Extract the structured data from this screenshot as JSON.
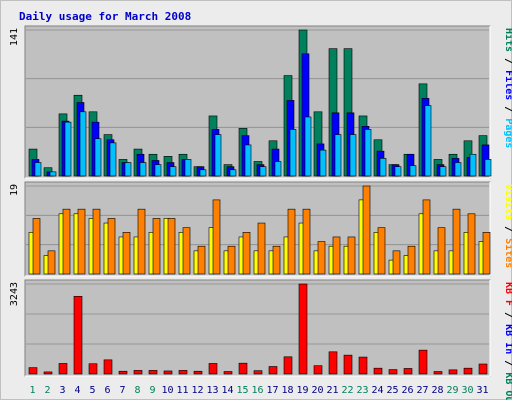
{
  "chart_data": {
    "type": "bar",
    "title": "Daily usage for March 2008",
    "categories": [
      "1",
      "2",
      "3",
      "4",
      "5",
      "6",
      "7",
      "8",
      "9",
      "10",
      "11",
      "12",
      "13",
      "14",
      "15",
      "16",
      "17",
      "18",
      "19",
      "20",
      "21",
      "22",
      "23",
      "24",
      "25",
      "26",
      "27",
      "28",
      "29",
      "30",
      "31"
    ],
    "weekend_days": [
      "1",
      "2",
      "8",
      "9",
      "15",
      "16",
      "22",
      "23",
      "29",
      "30"
    ],
    "colors": {
      "title": "#0000cc",
      "hits": "#00805c",
      "files": "#0000ff",
      "pages": "#00c0ff",
      "visits": "#ffff00",
      "sites": "#ff8000",
      "kb_in": "#0000ff",
      "kb_out": "#00805c",
      "kb_f": "#ff0000",
      "weekday_label": "#000080",
      "weekend_label": "#00805c",
      "plot_bg": "#c0c0c0"
    },
    "panels": [
      {
        "ymax_label": "141",
        "ymax": 141,
        "legend": [
          {
            "text": "Hits",
            "color": "#00805c"
          },
          {
            "text": "Files",
            "color": "#0000ff"
          },
          {
            "text": "Pages",
            "color": "#00c0ff"
          }
        ],
        "series": [
          {
            "name": "Hits",
            "values": [
              26,
              8,
              60,
              78,
              62,
              40,
              16,
              26,
              21,
              19,
              21,
              9,
              58,
              11,
              46,
              14,
              34,
              97,
              141,
              62,
              123,
              123,
              58,
              35,
              11,
              21,
              89,
              16,
              21,
              34,
              39
            ]
          },
          {
            "name": "Files",
            "values": [
              16,
              4,
              53,
              71,
              52,
              35,
              13,
              21,
              15,
              13,
              16,
              9,
              45,
              9,
              39,
              11,
              26,
              73,
              118,
              31,
              61,
              61,
              48,
              24,
              11,
              21,
              75,
              11,
              17,
              18,
              30
            ]
          },
          {
            "name": "Pages",
            "values": [
              13,
              4,
              52,
              62,
              36,
              32,
              13,
              13,
              11,
              9,
              16,
              6,
              40,
              6,
              30,
              9,
              14,
              45,
              57,
              25,
              40,
              40,
              45,
              17,
              9,
              10,
              68,
              9,
              13,
              21,
              16
            ]
          }
        ]
      },
      {
        "ymax_label": "19",
        "ymax": 19,
        "legend": [
          {
            "text": "Visits",
            "color": "#ffff00"
          },
          {
            "text": "Sites",
            "color": "#ff8000"
          }
        ],
        "series": [
          {
            "name": "Visits",
            "values": [
              9,
              4,
              13,
              13,
              12,
              11,
              8,
              8,
              9,
              12,
              9,
              5,
              10,
              5,
              8,
              5,
              5,
              8,
              11,
              5,
              6,
              6,
              16,
              9,
              3,
              4,
              13,
              5,
              5,
              9,
              7
            ]
          },
          {
            "name": "Sites",
            "values": [
              12,
              5,
              14,
              14,
              14,
              12,
              9,
              14,
              12,
              12,
              10,
              6,
              16,
              6,
              9,
              11,
              6,
              14,
              14,
              7,
              8,
              8,
              19,
              10,
              5,
              6,
              16,
              10,
              14,
              13,
              9
            ]
          }
        ]
      },
      {
        "ymax_label": "3243",
        "ymax": 3243,
        "legend": [
          {
            "text": "KB F",
            "color": "#ff0000"
          },
          {
            "text": "KB In",
            "color": "#0000ff"
          },
          {
            "text": "KB Out",
            "color": "#00805c"
          }
        ],
        "series": [
          {
            "name": "KB F",
            "values": [
              230,
              75,
              380,
              2800,
              370,
              510,
              100,
              130,
              130,
              110,
              130,
              100,
              380,
              90,
              390,
              120,
              270,
              620,
              3243,
              300,
              800,
              680,
              610,
              210,
              160,
              200,
              860,
              90,
              150,
              210,
              360
            ]
          }
        ]
      }
    ]
  }
}
